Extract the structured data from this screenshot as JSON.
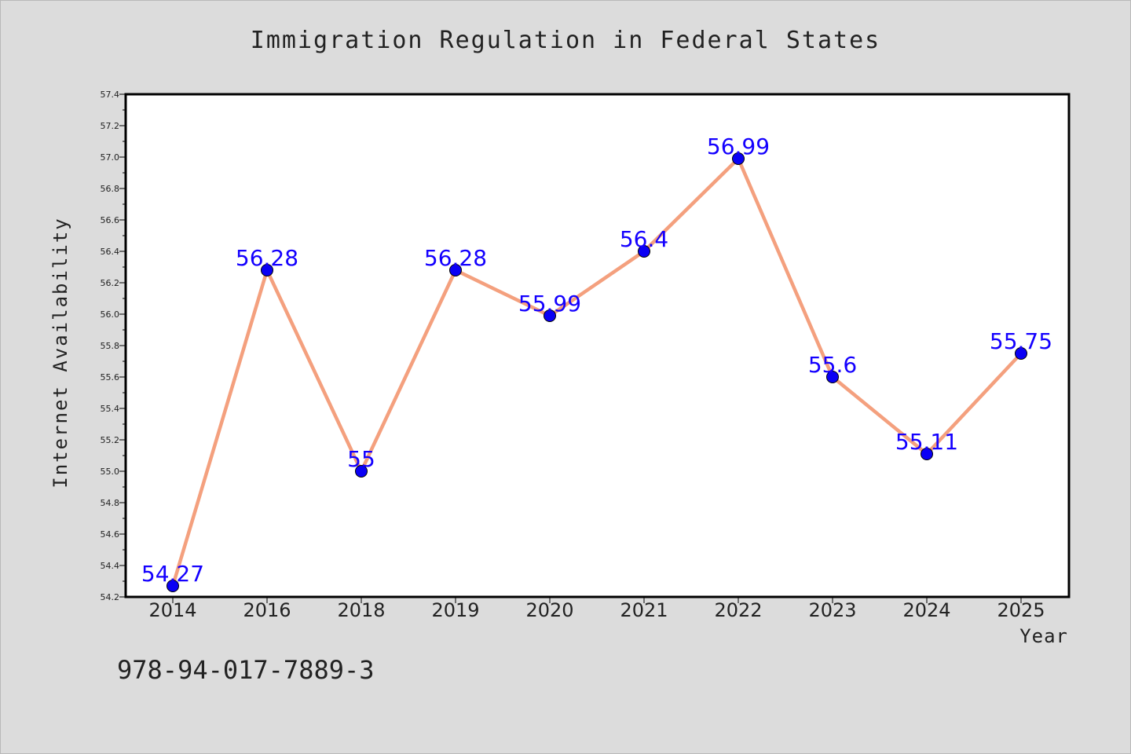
{
  "chart_data": {
    "type": "line",
    "title": "Immigration Regulation in Federal States",
    "xlabel": "Year",
    "ylabel": "Internet Availability",
    "categories": [
      "2014",
      "2016",
      "2018",
      "2019",
      "2020",
      "2021",
      "2022",
      "2023",
      "2024",
      "2025"
    ],
    "series": [
      {
        "values": [
          54.27,
          56.28,
          55,
          56.28,
          55.99,
          56.4,
          56.99,
          55.6,
          55.11,
          55.75
        ]
      }
    ],
    "data_labels": [
      "54.27",
      "56.28",
      "55",
      "56.28",
      "55.99",
      "56.4",
      "56.99",
      "55.6",
      "55.11",
      "55.75"
    ],
    "ylim": [
      54.2,
      57.4
    ],
    "yticks": [
      "54.2",
      "54.4",
      "54.6",
      "54.8",
      "55.0",
      "55.2",
      "55.4",
      "55.6",
      "55.8",
      "56.0",
      "56.2",
      "56.4",
      "56.6",
      "56.8",
      "57.0",
      "57.2",
      "57.4"
    ],
    "grid": false,
    "line_color": "#f4a07e",
    "marker_color": "#0a00f5",
    "label_color": "#1400ff"
  },
  "footer": {
    "isbn": "978-94-017-7889-3"
  }
}
